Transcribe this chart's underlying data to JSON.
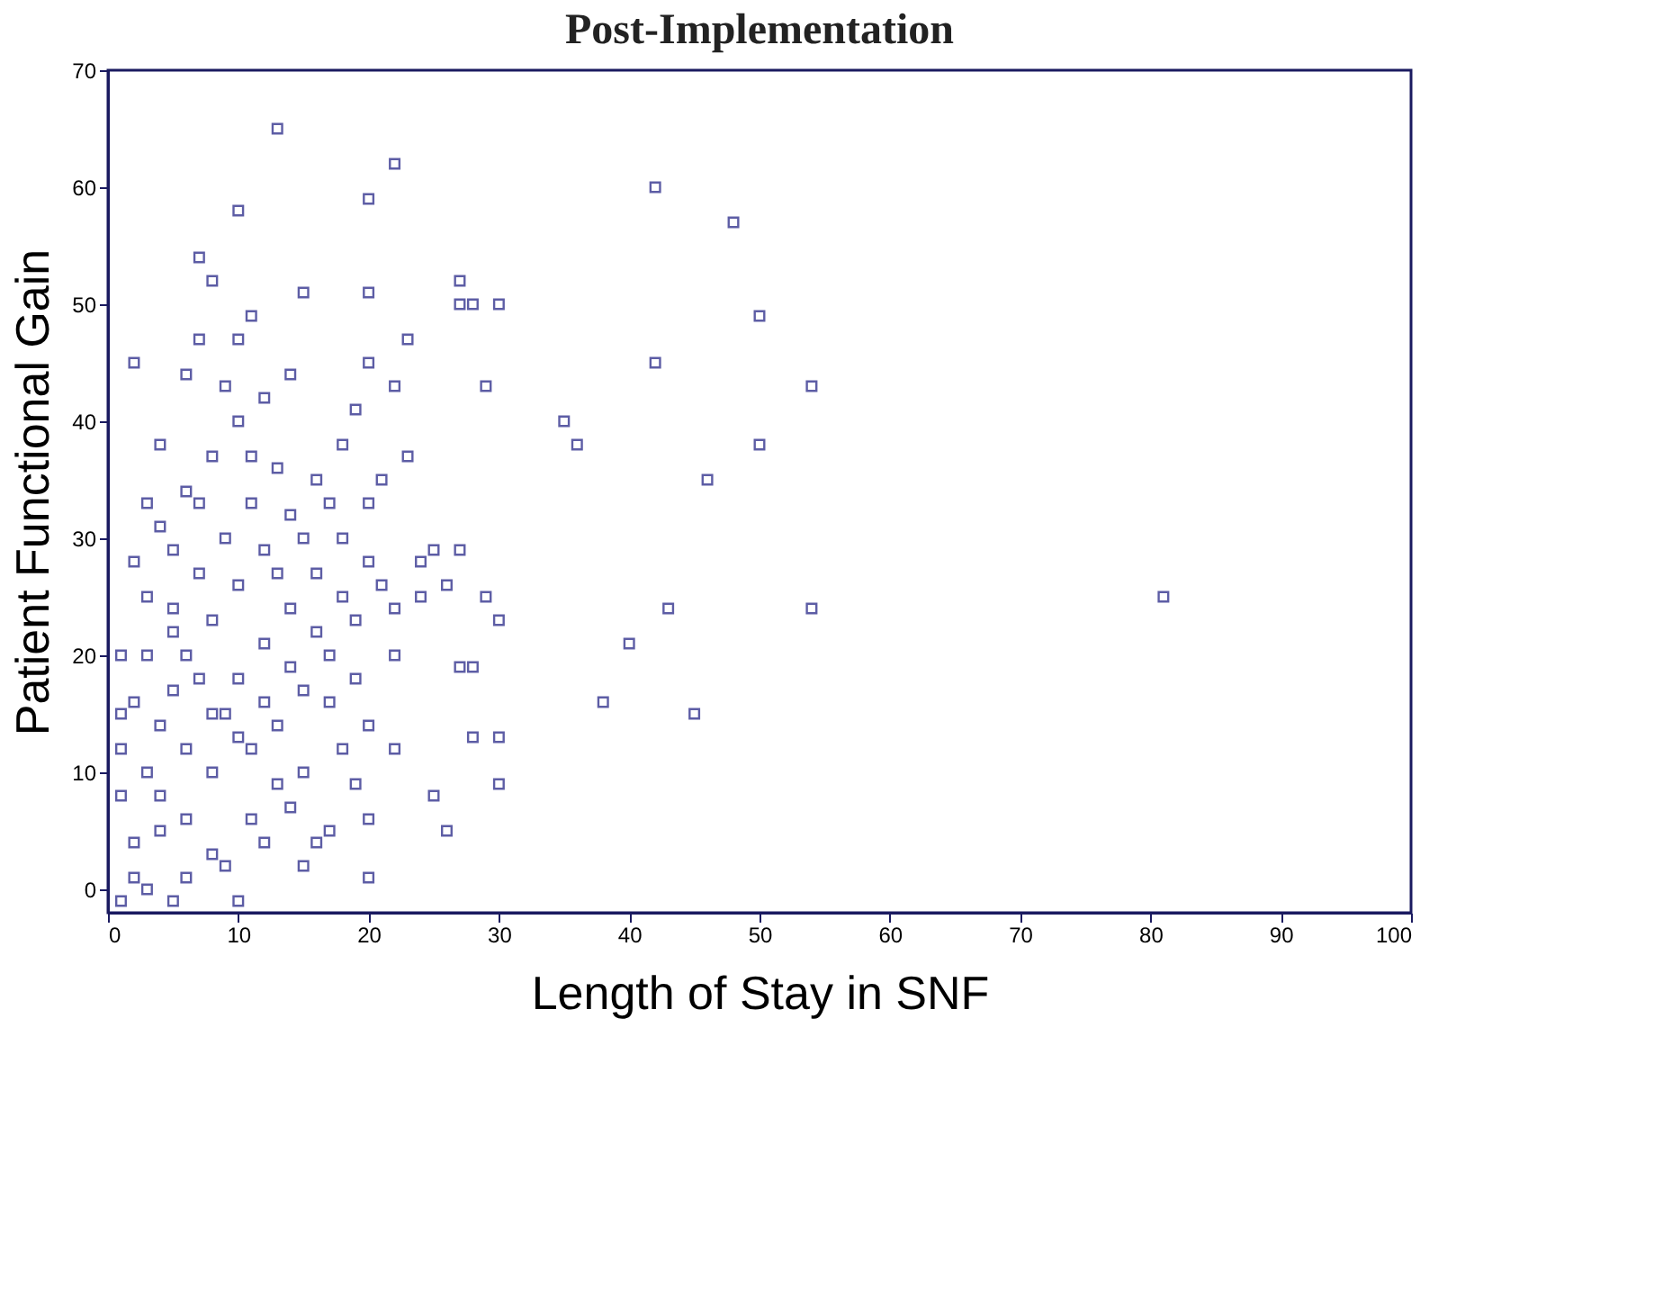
{
  "chart_data": {
    "type": "scatter",
    "title": "Post-Implementation",
    "xlabel": "Length of Stay in SNF",
    "ylabel": "Patient Functional Gain",
    "xlim": [
      0,
      100
    ],
    "ylim": [
      -2,
      70
    ],
    "xticks": [
      0,
      10,
      20,
      30,
      40,
      50,
      60,
      70,
      80,
      90,
      100
    ],
    "yticks": [
      0,
      10,
      20,
      30,
      40,
      50,
      60,
      70
    ],
    "grid": false,
    "marker": "square",
    "series": [
      {
        "color": "#1a1a80",
        "x": [
          13,
          20,
          22,
          42,
          48,
          10,
          8,
          7,
          2,
          11,
          15,
          20,
          27,
          27,
          28,
          30,
          50,
          54,
          42,
          35,
          36,
          50,
          46,
          29,
          22,
          23,
          20,
          81,
          54,
          43,
          40,
          38,
          45,
          30,
          29,
          27,
          25,
          24,
          22,
          28,
          27,
          28,
          30,
          30,
          25,
          26,
          22,
          20,
          18,
          19,
          20,
          17,
          16,
          15,
          20,
          10,
          5,
          1,
          3,
          6,
          8,
          12,
          14,
          13,
          11,
          9,
          7,
          5,
          3,
          2,
          4,
          6,
          8,
          10,
          12,
          14,
          9,
          6,
          7,
          10,
          4,
          1,
          1,
          1,
          1,
          2,
          3,
          4,
          5,
          6,
          8,
          10,
          12,
          14,
          16,
          18,
          19,
          13,
          11,
          9,
          7,
          5,
          3,
          2,
          4,
          6,
          8,
          10,
          12,
          14,
          16,
          18,
          20,
          20,
          18,
          16,
          14,
          12,
          10,
          8,
          6,
          4,
          2,
          9,
          11,
          13,
          15,
          17,
          19,
          21,
          21,
          23,
          17,
          15,
          7,
          3,
          5,
          11,
          13,
          15,
          17,
          19,
          22,
          24,
          26
        ],
        "values": [
          65,
          59,
          62,
          60,
          57,
          58,
          52,
          54,
          45,
          49,
          51,
          51,
          52,
          50,
          50,
          50,
          49,
          43,
          45,
          40,
          38,
          38,
          35,
          43,
          43,
          47,
          45,
          25,
          24,
          24,
          21,
          16,
          15,
          23,
          25,
          29,
          29,
          28,
          24,
          19,
          19,
          13,
          13,
          9,
          8,
          5,
          12,
          14,
          12,
          9,
          6,
          5,
          4,
          2,
          1,
          -1,
          -1,
          -1,
          0,
          1,
          3,
          4,
          7,
          9,
          12,
          15,
          18,
          22,
          25,
          28,
          31,
          34,
          37,
          40,
          42,
          44,
          43,
          44,
          47,
          47,
          38,
          20,
          15,
          12,
          8,
          4,
          10,
          14,
          17,
          20,
          23,
          26,
          29,
          32,
          35,
          38,
          41,
          36,
          33,
          30,
          27,
          24,
          20,
          16,
          8,
          6,
          10,
          13,
          16,
          19,
          22,
          25,
          28,
          33,
          30,
          27,
          24,
          21,
          18,
          15,
          12,
          5,
          1,
          2,
          6,
          14,
          17,
          20,
          23,
          26,
          35,
          37,
          16,
          10,
          33,
          33,
          29,
          37,
          27,
          30,
          33,
          18,
          20,
          25,
          26
        ]
      }
    ]
  }
}
